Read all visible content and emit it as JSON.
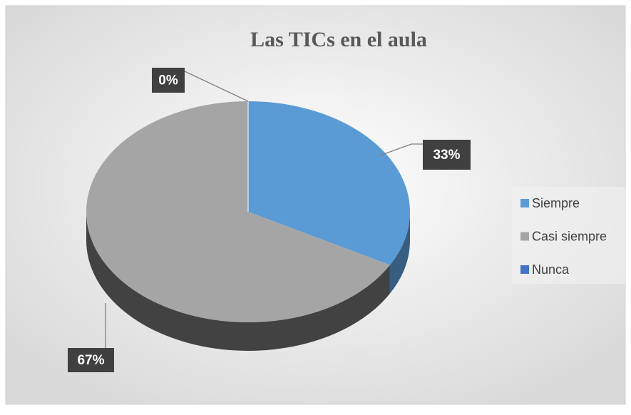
{
  "chart_data": {
    "type": "pie",
    "title": "Las TICs en el aula",
    "categories": [
      "Siempre",
      "Casi siempre",
      "Nunca"
    ],
    "values": [
      33,
      67,
      0
    ],
    "value_labels": [
      "33%",
      "67%",
      "0%"
    ],
    "colors": [
      "#5b9bd5",
      "#a5a5a5",
      "#4472c4"
    ],
    "legend": "right"
  }
}
